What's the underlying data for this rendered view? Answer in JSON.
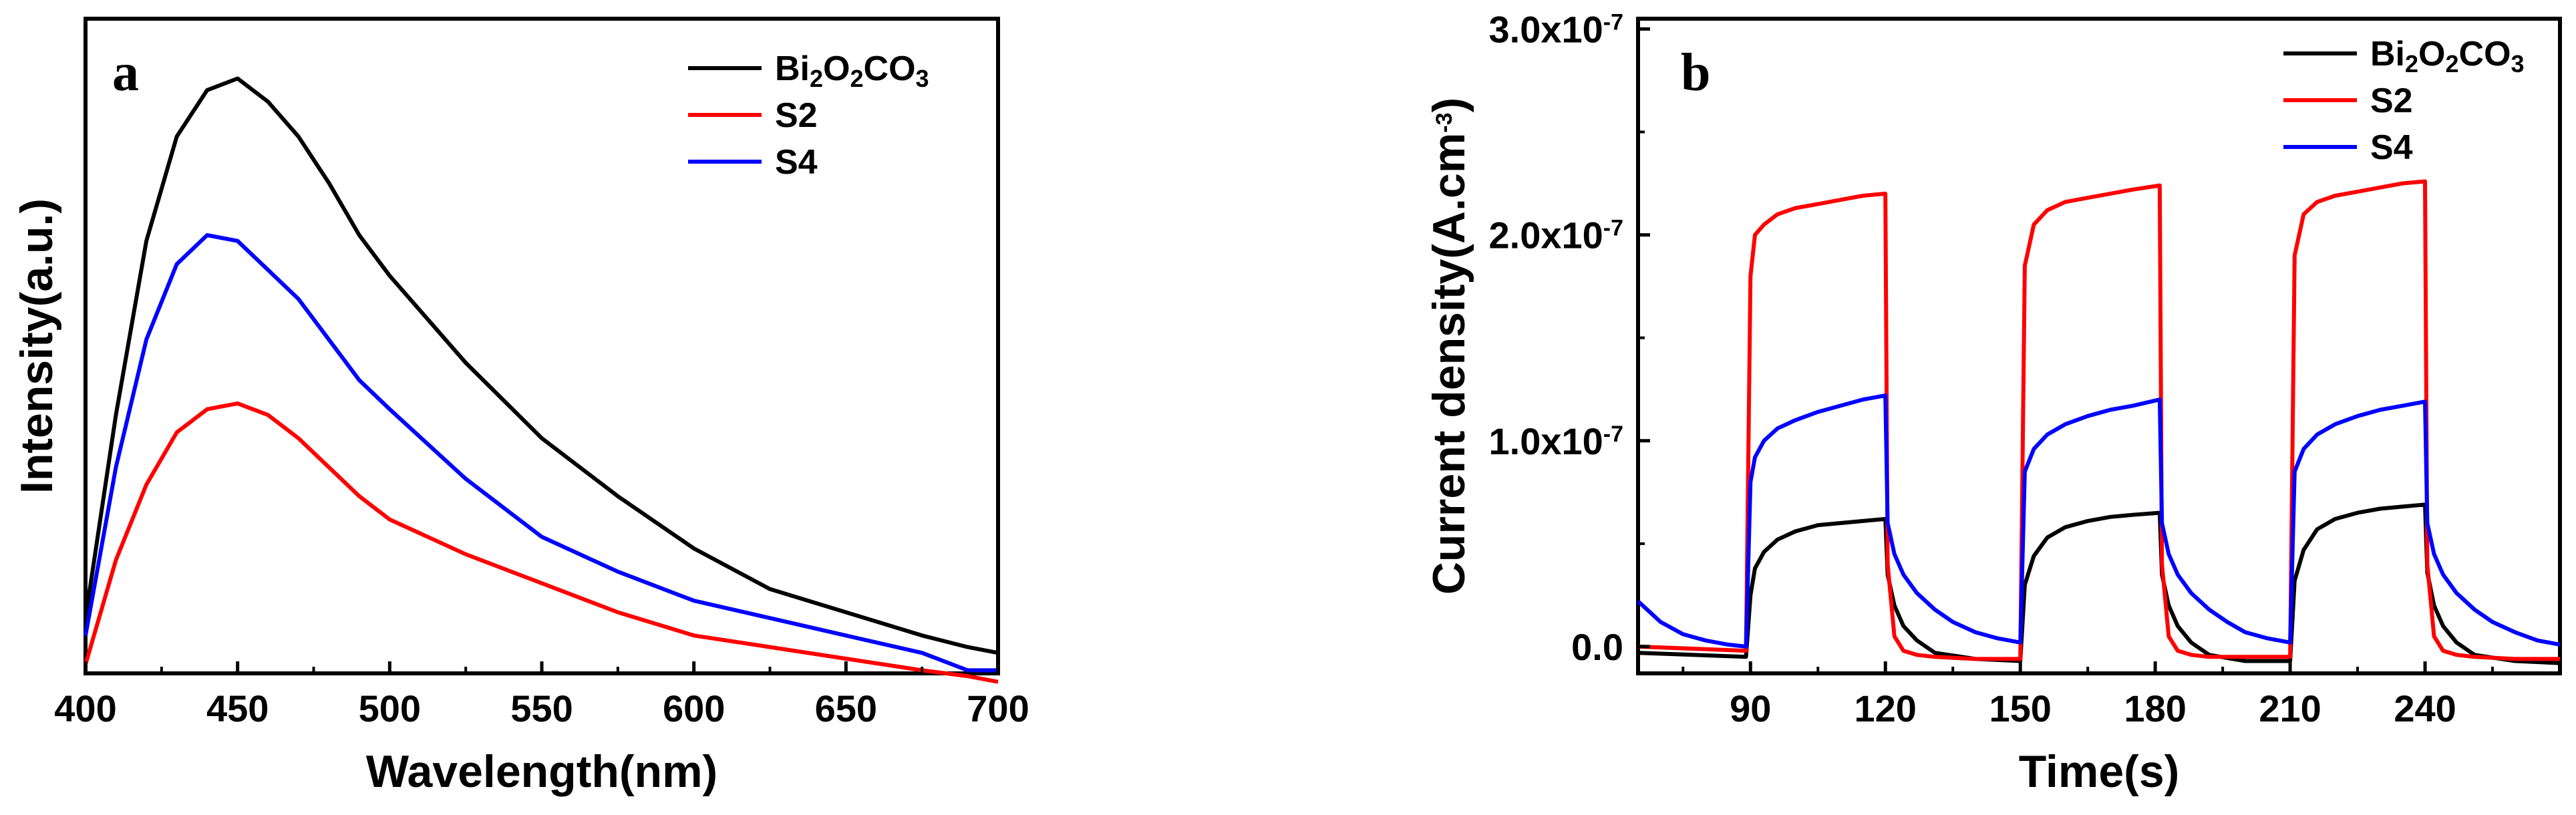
{
  "chart_data": [
    {
      "panel": "a",
      "type": "line",
      "xlabel": "Wavelength(nm)",
      "ylabel": "Intensity(a.u.)",
      "xlim": [
        400,
        700
      ],
      "ylim": [
        0,
        1
      ],
      "xticks": [
        "400",
        "450",
        "500",
        "550",
        "600",
        "650",
        "700"
      ],
      "yticks": [],
      "grid": false,
      "legend_position": "top-right",
      "x": [
        400,
        410,
        420,
        430,
        440,
        450,
        460,
        470,
        480,
        490,
        500,
        525,
        550,
        575,
        600,
        625,
        650,
        675,
        690,
        700
      ],
      "series": [
        {
          "name": "Bi2O2CO3",
          "name_parts": [
            [
              "Bi",
              ""
            ],
            [
              "2",
              "sub"
            ],
            [
              "O",
              ""
            ],
            [
              "2",
              "sub"
            ],
            [
              "CO",
              ""
            ],
            [
              "3",
              "sub"
            ]
          ],
          "color": "#000000",
          "values": [
            0.07,
            0.42,
            0.72,
            0.9,
            0.98,
            1.0,
            0.96,
            0.9,
            0.82,
            0.73,
            0.66,
            0.51,
            0.38,
            0.28,
            0.19,
            0.12,
            0.08,
            0.04,
            0.02,
            0.01
          ]
        },
        {
          "name": "S2",
          "name_parts": [
            [
              "S2",
              ""
            ]
          ],
          "color": "#ff0000",
          "values": [
            -0.01,
            0.17,
            0.3,
            0.39,
            0.43,
            0.44,
            0.42,
            0.38,
            0.33,
            0.28,
            0.24,
            0.18,
            0.13,
            0.08,
            0.04,
            0.02,
            0.0,
            -0.02,
            -0.03,
            -0.04
          ]
        },
        {
          "name": "S4",
          "name_parts": [
            [
              "S4",
              ""
            ]
          ],
          "color": "#0000ff",
          "values": [
            0.04,
            0.33,
            0.55,
            0.68,
            0.73,
            0.72,
            0.67,
            0.62,
            0.55,
            0.48,
            0.43,
            0.31,
            0.21,
            0.15,
            0.1,
            0.07,
            0.04,
            0.01,
            -0.02,
            -0.02
          ]
        }
      ]
    },
    {
      "panel": "b",
      "type": "line",
      "xlabel": "Time(s)",
      "ylabel_parts": [
        [
          "Current density(A.cm",
          ""
        ],
        [
          "-3",
          "sup"
        ],
        [
          ")",
          ""
        ]
      ],
      "ylabel": "Current density(A.cm-3)",
      "xlim": [
        65,
        270
      ],
      "ylim": [
        -1.3e-08,
        3.05e-07
      ],
      "xticks": [
        "90",
        "120",
        "150",
        "180",
        "210",
        "240"
      ],
      "yticks": [
        {
          "value": 0,
          "label_parts": [
            [
              "0.0",
              ""
            ]
          ]
        },
        {
          "value": 1e-07,
          "label_parts": [
            [
              "1.0x10",
              ""
            ],
            [
              "-7",
              "sup"
            ]
          ]
        },
        {
          "value": 2e-07,
          "label_parts": [
            [
              "2.0x10",
              ""
            ],
            [
              "-7",
              "sup"
            ]
          ]
        },
        {
          "value": 3e-07,
          "label_parts": [
            [
              "3.0x10",
              ""
            ],
            [
              "-7",
              "sup"
            ]
          ]
        }
      ],
      "grid": false,
      "legend_position": "top-right",
      "series": [
        {
          "name": "Bi2O2CO3",
          "name_parts": [
            [
              "Bi",
              ""
            ],
            [
              "2",
              "sub"
            ],
            [
              "O",
              ""
            ],
            [
              "2",
              "sub"
            ],
            [
              "CO",
              ""
            ],
            [
              "3",
              "sub"
            ]
          ],
          "color": "#000000",
          "x": [
            65,
            89,
            90,
            91,
            93,
            96,
            100,
            105,
            110,
            115,
            120,
            120.5,
            122,
            124,
            127,
            131,
            140,
            150,
            151,
            153,
            156,
            160,
            165,
            170,
            175,
            181,
            181.5,
            183,
            185,
            188,
            192,
            200,
            210,
            211,
            213,
            216,
            220,
            225,
            230,
            235,
            240,
            240.5,
            242,
            244,
            247,
            251,
            260,
            270
          ],
          "values": [
            -3e-09,
            -5e-09,
            2.5e-08,
            3.8e-08,
            4.6e-08,
            5.2e-08,
            5.6e-08,
            5.9e-08,
            6e-08,
            6.1e-08,
            6.2e-08,
            3.5e-08,
            2e-08,
            1e-08,
            3e-09,
            -3e-09,
            -6e-09,
            -7e-09,
            3e-08,
            4.4e-08,
            5.3e-08,
            5.8e-08,
            6.1e-08,
            6.3e-08,
            6.4e-08,
            6.5e-08,
            3.5e-08,
            2e-08,
            1e-08,
            2e-09,
            -4e-09,
            -7e-09,
            -7e-09,
            3.2e-08,
            4.7e-08,
            5.7e-08,
            6.2e-08,
            6.5e-08,
            6.7e-08,
            6.8e-08,
            6.9e-08,
            3.6e-08,
            2e-08,
            1e-08,
            2e-09,
            -4e-09,
            -7e-09,
            -8e-09
          ]
        },
        {
          "name": "S2",
          "name_parts": [
            [
              "S2",
              ""
            ]
          ],
          "color": "#ff0000",
          "x": [
            65,
            89,
            90,
            91,
            93,
            96,
            100,
            105,
            110,
            115,
            120,
            120.5,
            122,
            124,
            127,
            131,
            140,
            150,
            151,
            153,
            156,
            160,
            165,
            170,
            175,
            181,
            181.5,
            183,
            185,
            188,
            192,
            200,
            210,
            211,
            213,
            216,
            220,
            225,
            230,
            235,
            240,
            240.5,
            242,
            244,
            247,
            251,
            260,
            270
          ],
          "values": [
            0.0,
            -2e-09,
            1.8e-07,
            2e-07,
            2.05e-07,
            2.1e-07,
            2.13e-07,
            2.15e-07,
            2.17e-07,
            2.19e-07,
            2.2e-07,
            4e-08,
            5e-09,
            -2e-09,
            -4e-09,
            -5e-09,
            -6e-09,
            -6e-09,
            1.85e-07,
            2.05e-07,
            2.12e-07,
            2.16e-07,
            2.18e-07,
            2.2e-07,
            2.22e-07,
            2.24e-07,
            4e-08,
            5e-09,
            -2e-09,
            -4e-09,
            -5e-09,
            -5e-09,
            -5e-09,
            1.9e-07,
            2.1e-07,
            2.16e-07,
            2.19e-07,
            2.21e-07,
            2.23e-07,
            2.25e-07,
            2.26e-07,
            4e-08,
            5e-09,
            -2e-09,
            -4e-09,
            -5e-09,
            -6e-09,
            -6e-09
          ]
        },
        {
          "name": "S4",
          "name_parts": [
            [
              "S4",
              ""
            ]
          ],
          "color": "#0000ff",
          "x": [
            65,
            70,
            75,
            80,
            85,
            89,
            90,
            91,
            93,
            96,
            100,
            105,
            110,
            115,
            120,
            120.5,
            122,
            124,
            127,
            131,
            135,
            140,
            145,
            150,
            151,
            153,
            156,
            160,
            165,
            170,
            175,
            181,
            181.5,
            183,
            185,
            188,
            192,
            196,
            200,
            205,
            210,
            211,
            213,
            216,
            220,
            225,
            230,
            235,
            240,
            240.5,
            242,
            244,
            247,
            251,
            255,
            260,
            265,
            270
          ],
          "values": [
            2.2e-08,
            1.2e-08,
            6e-09,
            3e-09,
            1e-09,
            0.0,
            8e-08,
            9.2e-08,
            1e-07,
            1.06e-07,
            1.1e-07,
            1.14e-07,
            1.17e-07,
            1.2e-07,
            1.22e-07,
            6e-08,
            4.5e-08,
            3.5e-08,
            2.6e-08,
            1.8e-08,
            1.2e-08,
            7e-09,
            4e-09,
            2e-09,
            8.5e-08,
            9.6e-08,
            1.03e-07,
            1.08e-07,
            1.12e-07,
            1.15e-07,
            1.17e-07,
            1.2e-07,
            6e-08,
            4.5e-08,
            3.5e-08,
            2.6e-08,
            1.8e-08,
            1.2e-08,
            7e-09,
            4e-09,
            2e-09,
            8.5e-08,
            9.6e-08,
            1.03e-07,
            1.08e-07,
            1.12e-07,
            1.15e-07,
            1.17e-07,
            1.19e-07,
            6e-08,
            4.5e-08,
            3.5e-08,
            2.6e-08,
            1.8e-08,
            1.2e-08,
            7e-09,
            3e-09,
            1e-09
          ]
        }
      ]
    }
  ]
}
